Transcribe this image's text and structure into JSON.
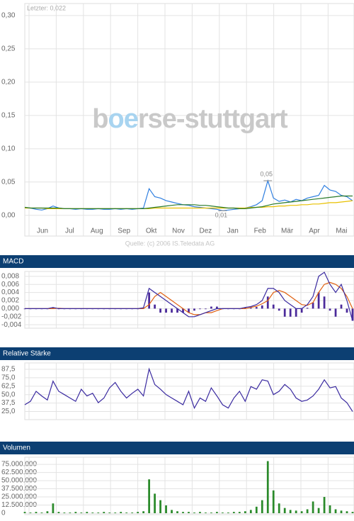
{
  "chart_data": [
    {
      "type": "line",
      "subtitle": "Letzter: 0,022",
      "watermark": [
        "b",
        "oe",
        "rse-stuttgart"
      ],
      "source": "Quelle: (c) 2006 IS.Teledata AG",
      "xticks": [
        "Jun",
        "Jul",
        "Aug",
        "Sep",
        "Okt",
        "Nov",
        "Dez",
        "Jan",
        "Feb",
        "Mär",
        "Apr",
        "Mai"
      ],
      "ylim": [
        -0.013,
        0.318
      ],
      "yticks": [
        {
          "value": 0,
          "label": "0,00"
        },
        {
          "value": 0.05,
          "label": "0,05"
        },
        {
          "value": 0.1,
          "label": "0,10"
        },
        {
          "value": 0.15,
          "label": "0,15"
        },
        {
          "value": 0.2,
          "label": "0,20"
        },
        {
          "value": 0.25,
          "label": "0,25"
        },
        {
          "value": 0.3,
          "label": "0,30"
        }
      ],
      "grid": true,
      "annotations": [
        {
          "label": "0,05",
          "value": 0.052
        },
        {
          "label": "0,01",
          "value": 0.007
        }
      ],
      "series": [
        {
          "mark": "line",
          "color": "#2f7fe0",
          "values": [
            0.012,
            0.011,
            0.009,
            0.008,
            0.01,
            0.014,
            0.011,
            0.01,
            0.01,
            0.009,
            0.01,
            0.009,
            0.009,
            0.01,
            0.009,
            0.009,
            0.01,
            0.009,
            0.01,
            0.009,
            0.01,
            0.011,
            0.04,
            0.028,
            0.026,
            0.022,
            0.02,
            0.018,
            0.016,
            0.015,
            0.013,
            0.012,
            0.011,
            0.01,
            0.009,
            0.007,
            0.008,
            0.009,
            0.01,
            0.011,
            0.013,
            0.016,
            0.022,
            0.052,
            0.026,
            0.021,
            0.023,
            0.02,
            0.024,
            0.022,
            0.026,
            0.028,
            0.03,
            0.045,
            0.038,
            0.036,
            0.03,
            0.028,
            0.022
          ]
        },
        {
          "mark": "line",
          "color": "#e8c000",
          "values": [
            0.011,
            0.011,
            0.011,
            0.011,
            0.01,
            0.01,
            0.01,
            0.01,
            0.01,
            0.01,
            0.01,
            0.01,
            0.01,
            0.01,
            0.01,
            0.01,
            0.01,
            0.01,
            0.01,
            0.01,
            0.01,
            0.01,
            0.01,
            0.011,
            0.011,
            0.011,
            0.011,
            0.011,
            0.011,
            0.011,
            0.011,
            0.011,
            0.011,
            0.011,
            0.011,
            0.011,
            0.011,
            0.011,
            0.011,
            0.011,
            0.012,
            0.012,
            0.012,
            0.013,
            0.013,
            0.014,
            0.014,
            0.015,
            0.015,
            0.016,
            0.016,
            0.017,
            0.017,
            0.018,
            0.019,
            0.019,
            0.02,
            0.021,
            0.022
          ]
        },
        {
          "mark": "line",
          "color": "#2a7a2a",
          "values": [
            0.012,
            0.011,
            0.011,
            0.011,
            0.011,
            0.011,
            0.011,
            0.01,
            0.01,
            0.01,
            0.01,
            0.01,
            0.01,
            0.01,
            0.01,
            0.01,
            0.01,
            0.01,
            0.01,
            0.01,
            0.01,
            0.01,
            0.011,
            0.012,
            0.013,
            0.014,
            0.015,
            0.016,
            0.016,
            0.016,
            0.016,
            0.015,
            0.015,
            0.014,
            0.013,
            0.012,
            0.011,
            0.011,
            0.01,
            0.01,
            0.011,
            0.012,
            0.013,
            0.015,
            0.017,
            0.018,
            0.019,
            0.02,
            0.021,
            0.022,
            0.023,
            0.024,
            0.025,
            0.026,
            0.027,
            0.028,
            0.029,
            0.029,
            0.029
          ]
        }
      ]
    },
    {
      "type": "line",
      "title": "MACD",
      "ylim": [
        -0.0045,
        0.0092
      ],
      "grid": true,
      "yticks": [
        {
          "value": -0.004,
          "label": "-0,004"
        },
        {
          "value": -0.002,
          "label": "-0,002"
        },
        {
          "value": 0,
          "label": "0,000"
        },
        {
          "value": 0.002,
          "label": "0,002"
        },
        {
          "value": 0.004,
          "label": "0,004"
        },
        {
          "value": 0.006,
          "label": "0,006"
        },
        {
          "value": 0.008,
          "label": "0,008"
        }
      ],
      "series": [
        {
          "mark": "bar",
          "color": "#4b2a9a",
          "values": [
            0,
            0,
            0,
            0,
            0,
            0.0003,
            -0.0001,
            0,
            0,
            0,
            0,
            0,
            0,
            0,
            0,
            0,
            0,
            0,
            0,
            0,
            0,
            0.0002,
            0.004,
            0.001,
            -0.001,
            -0.001,
            -0.001,
            -0.001,
            -0.001,
            -0.001,
            -0.0005,
            0,
            0,
            0.0005,
            0.0005,
            0,
            0,
            0,
            0,
            0.0003,
            0.0002,
            0.0004,
            0.0008,
            0.003,
            0.001,
            -0.0005,
            -0.002,
            -0.002,
            -0.002,
            -0.001,
            0.0002,
            0.0015,
            0.004,
            0.003,
            -0.0005,
            -0.002,
            0.001,
            -0.001,
            -0.003
          ]
        },
        {
          "mark": "line",
          "color": "#e06010",
          "values": [
            0,
            0,
            0,
            0,
            0,
            0,
            0.0001,
            0,
            0,
            0,
            0,
            0,
            0,
            0,
            0,
            0,
            0,
            0,
            0,
            0,
            0,
            0,
            0.001,
            0.003,
            0.004,
            0.003,
            0.002,
            0.001,
            0,
            -0.001,
            -0.0015,
            -0.0015,
            -0.001,
            -0.001,
            -0.0005,
            0,
            0,
            0,
            0,
            0,
            0.0003,
            0.0006,
            0.0012,
            0.002,
            0.004,
            0.0045,
            0.004,
            0.003,
            0.002,
            0.001,
            0.0008,
            0.0015,
            0.004,
            0.006,
            0.0065,
            0.006,
            0.005,
            0.003,
            0
          ]
        },
        {
          "mark": "line",
          "color": "#3a2aa0",
          "values": [
            0,
            0,
            0,
            0,
            0,
            0.0003,
            0,
            0,
            0,
            0,
            0,
            0,
            0,
            0,
            0,
            0,
            0,
            0,
            0,
            0,
            0,
            0.0002,
            0.005,
            0.004,
            0.003,
            0.002,
            0.001,
            0,
            -0.001,
            -0.002,
            -0.002,
            -0.0015,
            -0.001,
            -0.0005,
            0,
            0,
            0,
            0,
            0,
            0.0003,
            0.0005,
            0.001,
            0.002,
            0.005,
            0.005,
            0.004,
            0.002,
            0.001,
            0,
            0,
            0.001,
            0.003,
            0.008,
            0.009,
            0.006,
            0.004,
            0.006,
            0.002,
            -0.003
          ]
        }
      ]
    },
    {
      "type": "line",
      "title": "Relative Stärke",
      "ylim": [
        15,
        97
      ],
      "grid": true,
      "yticks": [
        {
          "value": 25,
          "label": "25,0"
        },
        {
          "value": 37.5,
          "label": "37,5"
        },
        {
          "value": 50,
          "label": "50,0"
        },
        {
          "value": 62.5,
          "label": "62,5"
        },
        {
          "value": 75,
          "label": "75,0"
        },
        {
          "value": 87.5,
          "label": "87,5"
        }
      ],
      "series": [
        {
          "mark": "line",
          "color": "#3a2aa0",
          "values": [
            35,
            40,
            55,
            48,
            42,
            70,
            55,
            50,
            45,
            40,
            58,
            48,
            52,
            38,
            45,
            60,
            68,
            55,
            45,
            52,
            58,
            48,
            88,
            65,
            58,
            50,
            45,
            40,
            35,
            55,
            30,
            45,
            40,
            60,
            48,
            35,
            30,
            45,
            55,
            40,
            62,
            58,
            72,
            70,
            50,
            55,
            65,
            58,
            45,
            40,
            42,
            48,
            58,
            72,
            60,
            62,
            45,
            38,
            25
          ]
        }
      ]
    },
    {
      "type": "bar",
      "title": "Volumen",
      "ylim": [
        0,
        86000000
      ],
      "grid": true,
      "yticks": [
        0,
        {
          "value": 12500000,
          "label": "12.500.000"
        },
        {
          "value": 25000000,
          "label": "25.000.000"
        },
        {
          "value": 37500000,
          "label": "37.500.000"
        },
        {
          "value": 50000000,
          "label": "50.000.000"
        },
        {
          "value": 62500000,
          "label": "62.500.000"
        },
        {
          "value": 75000000,
          "label": "75.000.000"
        }
      ],
      "series": [
        {
          "mark": "bar",
          "color": "#2a8a2a",
          "values": [
            2000000,
            1000000,
            2000000,
            1000000,
            3000000,
            15000000,
            2000000,
            1000000,
            1000000,
            2000000,
            1000000,
            2000000,
            1000000,
            1000000,
            2000000,
            1000000,
            1000000,
            2000000,
            1000000,
            1000000,
            2000000,
            3000000,
            52000000,
            30000000,
            20000000,
            12000000,
            5000000,
            3000000,
            2000000,
            2000000,
            1000000,
            2000000,
            1000000,
            1000000,
            2000000,
            1000000,
            1000000,
            2000000,
            2000000,
            3000000,
            5000000,
            10000000,
            20000000,
            80000000,
            35000000,
            15000000,
            8000000,
            5000000,
            4000000,
            3000000,
            6000000,
            18000000,
            8000000,
            25000000,
            12000000,
            6000000,
            4000000,
            3000000,
            2000000
          ]
        }
      ]
    }
  ]
}
